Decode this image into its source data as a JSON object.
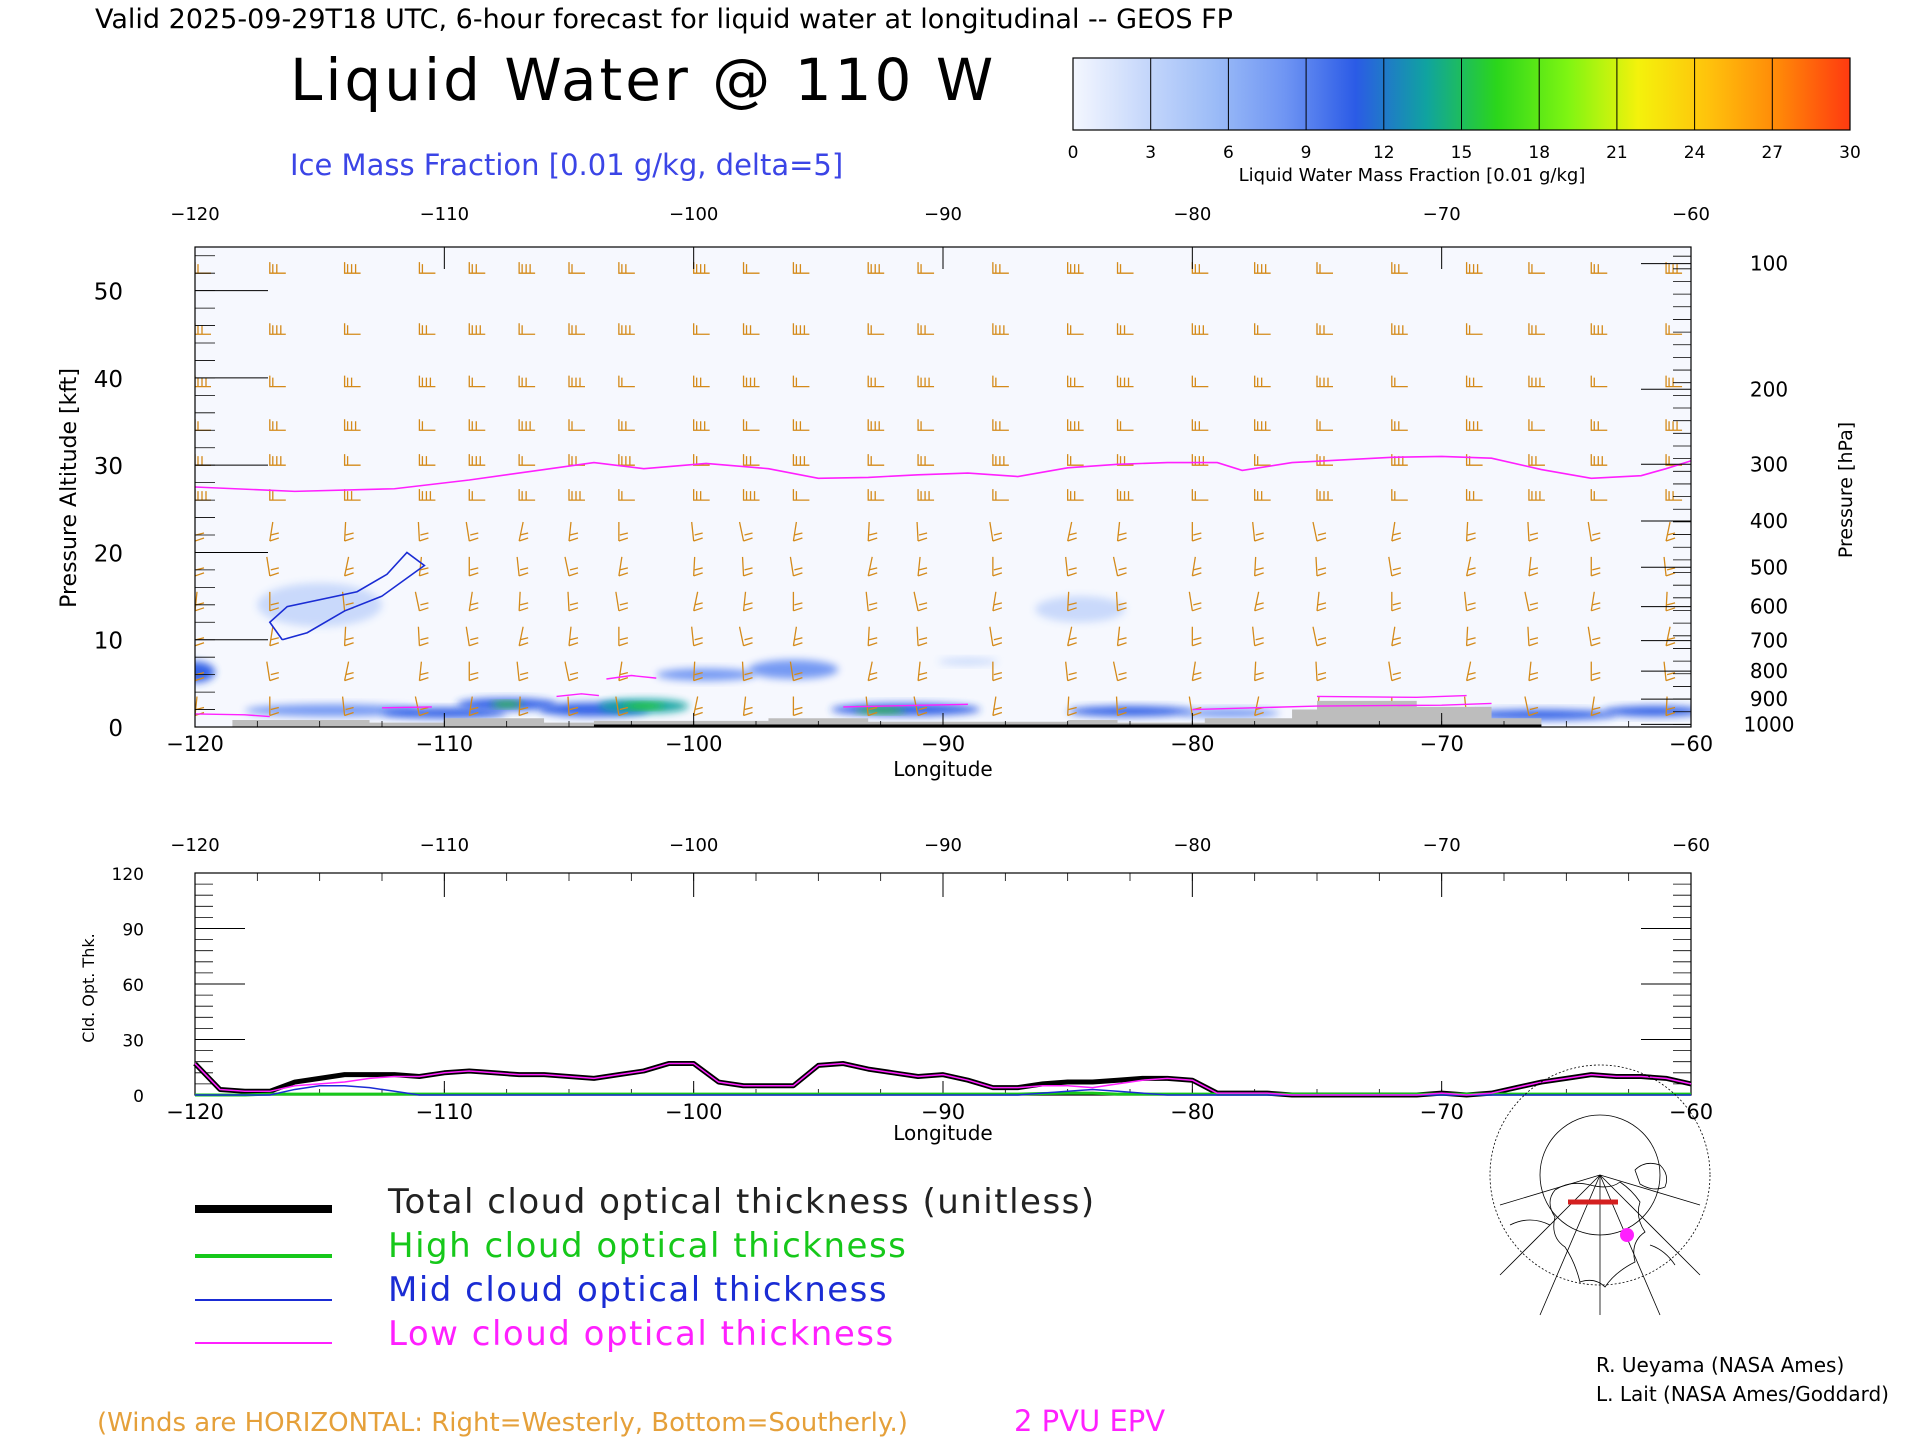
{
  "header": {
    "valid_line": "Valid 2025-09-29T18 UTC, 6-hour forecast for liquid water at longitudinal -- GEOS FP",
    "title": "Liquid Water @ 110 W",
    "contour_label": "Ice Mass Fraction [0.01 g/kg, delta=5]"
  },
  "colorbar": {
    "label": "Liquid Water Mass Fraction [0.01 g/kg]",
    "ticks": [
      "0",
      "3",
      "6",
      "9",
      "12",
      "15",
      "18",
      "21",
      "24",
      "27",
      "30"
    ],
    "colors": [
      "#f4f7ff",
      "#c7d8fb",
      "#9cbcf7",
      "#6f95f3",
      "#2b5be6",
      "#10a3a0",
      "#2bd61b",
      "#7ef512",
      "#f4f20c",
      "#ffc20c",
      "#ff8708",
      "#ff3a10"
    ]
  },
  "colors": {
    "wind_barb": "#d48a1a",
    "ice_contour": "#1a2cd4",
    "epv_line": "#ff20ff",
    "terrain": "#bdbdbd",
    "total_line": "#000000",
    "high_line": "#16c81a",
    "mid_line": "#1a2cd4",
    "low_line": "#ff20ff",
    "ice_label": "#3b45e6",
    "winds_note": "#e5a03a"
  },
  "chart_data": [
    {
      "type": "heatmap",
      "title": "Liquid Water @ 110 W",
      "xlabel": "Longitude",
      "ylabel": "Pressure Altitude [kft]",
      "y2label": "Pressure [hPa]",
      "xlim": [
        -120,
        -60
      ],
      "ylim": [
        0,
        55
      ],
      "x_ticks": [
        -120,
        -110,
        -100,
        -90,
        -80,
        -70,
        -60
      ],
      "x_tick_labels": [
        "−120",
        "−110",
        "−100",
        "−90",
        "−80",
        "−70",
        "−60"
      ],
      "y_ticks": [
        0,
        10,
        20,
        30,
        40,
        50
      ],
      "y_tick_labels": [
        "0",
        "10",
        "20",
        "30",
        "40",
        "50"
      ],
      "pressure_ticks": [
        {
          "hpa": "100",
          "kft": 53.1
        },
        {
          "hpa": "200",
          "kft": 38.7
        },
        {
          "hpa": "300",
          "kft": 30.1
        },
        {
          "hpa": "400",
          "kft": 23.6
        },
        {
          "hpa": "500",
          "kft": 18.3
        },
        {
          "hpa": "600",
          "kft": 13.8
        },
        {
          "hpa": "700",
          "kft": 9.9
        },
        {
          "hpa": "800",
          "kft": 6.4
        },
        {
          "hpa": "900",
          "kft": 3.2
        },
        {
          "hpa": "1000",
          "kft": 0.3
        }
      ],
      "liquid_water_patches": [
        {
          "lon": -120.0,
          "kft": 6.3,
          "rx": 0.8,
          "ry": 1.2,
          "value": 11
        },
        {
          "lon": -114.5,
          "kft": 1.9,
          "rx": 3.5,
          "ry": 0.7,
          "value": 9
        },
        {
          "lon": -110.0,
          "kft": 1.6,
          "rx": 2.5,
          "ry": 0.6,
          "value": 11
        },
        {
          "lon": -107.5,
          "kft": 2.6,
          "rx": 2.0,
          "ry": 0.7,
          "value": 12
        },
        {
          "lon": -107.5,
          "kft": 2.6,
          "rx": 0.6,
          "ry": 0.3,
          "value": 16
        },
        {
          "lon": -104.0,
          "kft": 2.0,
          "rx": 2.2,
          "ry": 0.8,
          "value": 10
        },
        {
          "lon": -102.0,
          "kft": 2.4,
          "rx": 1.8,
          "ry": 0.8,
          "value": 13
        },
        {
          "lon": -102.0,
          "kft": 2.4,
          "rx": 0.8,
          "ry": 0.3,
          "value": 17
        },
        {
          "lon": -99.5,
          "kft": 6.0,
          "rx": 2.0,
          "ry": 0.7,
          "value": 7
        },
        {
          "lon": -96.0,
          "kft": 6.6,
          "rx": 1.8,
          "ry": 1.1,
          "value": 9
        },
        {
          "lon": -91.5,
          "kft": 2.0,
          "rx": 3.0,
          "ry": 0.7,
          "value": 11
        },
        {
          "lon": -92.5,
          "kft": 1.9,
          "rx": 1.0,
          "ry": 0.3,
          "value": 16
        },
        {
          "lon": -89.0,
          "kft": 7.5,
          "rx": 1.2,
          "ry": 0.4,
          "value": 3
        },
        {
          "lon": -84.5,
          "kft": 13.5,
          "rx": 1.8,
          "ry": 1.5,
          "value": 3
        },
        {
          "lon": -82.5,
          "kft": 1.8,
          "rx": 2.5,
          "ry": 0.6,
          "value": 10
        },
        {
          "lon": -78.5,
          "kft": 1.6,
          "rx": 2.0,
          "ry": 0.5,
          "value": 7
        },
        {
          "lon": -66.0,
          "kft": 1.4,
          "rx": 3.0,
          "ry": 0.6,
          "value": 10
        },
        {
          "lon": -61.5,
          "kft": 1.8,
          "rx": 2.0,
          "ry": 0.6,
          "value": 11
        },
        {
          "lon": -115.0,
          "kft": 14.0,
          "rx": 2.5,
          "ry": 2.5,
          "value": 3
        }
      ],
      "ice_contour_5": [
        [
          -116.5,
          10
        ],
        [
          -117.0,
          12
        ],
        [
          -116.3,
          13.8
        ],
        [
          -113.5,
          15.5
        ],
        [
          -112.3,
          17.5
        ],
        [
          -111.5,
          20
        ],
        [
          -110.8,
          18.5
        ],
        [
          -112.5,
          15
        ],
        [
          -114.0,
          13.3
        ],
        [
          -115.5,
          10.8
        ],
        [
          -116.5,
          10
        ]
      ],
      "epv_2pvu": [
        [
          -120,
          27.5
        ],
        [
          -116,
          27
        ],
        [
          -112,
          27.3
        ],
        [
          -109,
          28.3
        ],
        [
          -106,
          29.5
        ],
        [
          -104,
          30.3
        ],
        [
          -102,
          29.6
        ],
        [
          -99.5,
          30.2
        ],
        [
          -97,
          29.6
        ],
        [
          -95,
          28.5
        ],
        [
          -93,
          28.6
        ],
        [
          -91,
          28.9
        ],
        [
          -89,
          29.1
        ],
        [
          -87,
          28.7
        ],
        [
          -85,
          29.7
        ],
        [
          -83,
          30.1
        ],
        [
          -81,
          30.3
        ],
        [
          -79,
          30.3
        ],
        [
          -78,
          29.4
        ],
        [
          -76,
          30.3
        ],
        [
          -74,
          30.6
        ],
        [
          -72,
          30.9
        ],
        [
          -70,
          31.0
        ],
        [
          -68,
          30.8
        ],
        [
          -66,
          29.5
        ],
        [
          -64,
          28.5
        ],
        [
          -62,
          28.8
        ],
        [
          -61,
          29.6
        ],
        [
          -60,
          30.5
        ],
        [
          -59.5,
          29
        ]
      ],
      "low_contour_lines": [
        [
          [
            -120,
            1.5
          ],
          [
            -118,
            1.4
          ],
          [
            -117,
            1.2
          ]
        ],
        [
          [
            -112.5,
            2.2
          ],
          [
            -110.5,
            2.3
          ]
        ],
        [
          [
            -105.5,
            3.5
          ],
          [
            -104.5,
            3.8
          ],
          [
            -103.8,
            3.6
          ]
        ],
        [
          [
            -103.5,
            5.5
          ],
          [
            -102.5,
            5.9
          ],
          [
            -101.5,
            5.6
          ]
        ],
        [
          [
            -94,
            2.3
          ],
          [
            -89,
            2.6
          ]
        ],
        [
          [
            -80,
            2.0
          ],
          [
            -75,
            2.4
          ],
          [
            -70,
            2.5
          ],
          [
            -68,
            2.7
          ]
        ],
        [
          [
            -75,
            3.5
          ],
          [
            -71,
            3.4
          ],
          [
            -69,
            3.6
          ]
        ]
      ],
      "terrain": [
        [
          -120,
          0
        ],
        [
          -118.5,
          0
        ],
        [
          -118.5,
          0.8
        ],
        [
          -113,
          0.8
        ],
        [
          -113,
          0.5
        ],
        [
          -110,
          0.5
        ],
        [
          -110,
          1.0
        ],
        [
          -106,
          1.0
        ],
        [
          -106,
          0.5
        ],
        [
          -104,
          0.5
        ],
        [
          -104,
          0.7
        ],
        [
          -97,
          0.7
        ],
        [
          -97,
          1.0
        ],
        [
          -93,
          1.0
        ],
        [
          -93,
          0.6
        ],
        [
          -85,
          0.6
        ],
        [
          -85,
          0.8
        ],
        [
          -83,
          0.8
        ],
        [
          -83,
          0.5
        ],
        [
          -79.5,
          0.5
        ],
        [
          -79.5,
          1.0
        ],
        [
          -76,
          1.0
        ],
        [
          -76,
          2.0
        ],
        [
          -75,
          2.0
        ],
        [
          -75,
          3.0
        ],
        [
          -71,
          3.0
        ],
        [
          -71,
          2.3
        ],
        [
          -68,
          2.3
        ],
        [
          -68,
          1.0
        ],
        [
          -66,
          1.0
        ],
        [
          -66,
          0
        ],
        [
          -120,
          0
        ]
      ],
      "wind_barb_columns": [
        -120,
        -117,
        -114,
        -111,
        -109,
        -107,
        -105,
        -103,
        -100,
        -98,
        -96,
        -93,
        -91,
        -88,
        -85,
        -83,
        -80,
        -77.5,
        -75,
        -72,
        -69,
        -66.5,
        -64,
        -61
      ]
    },
    {
      "type": "line",
      "xlabel": "Longitude",
      "ylabel": "Cld. Opt. Thk.",
      "xlim": [
        -120,
        -60
      ],
      "ylim": [
        0,
        120
      ],
      "x_ticks": [
        -120,
        -110,
        -100,
        -90,
        -80,
        -70,
        -60
      ],
      "x_tick_labels": [
        "−120",
        "−110",
        "−100",
        "−90",
        "−80",
        "−70",
        "−60"
      ],
      "y_ticks": [
        0,
        30,
        60,
        90,
        120
      ],
      "y_tick_labels": [
        "0",
        "30",
        "60",
        "90",
        "120"
      ],
      "x": [
        -120,
        -119,
        -118,
        -117,
        -116,
        -115,
        -114,
        -113,
        -112,
        -111,
        -110,
        -109,
        -108,
        -107,
        -106,
        -105,
        -104,
        -103,
        -102,
        -101,
        -100,
        -99,
        -98,
        -97,
        -96,
        -95,
        -94,
        -93,
        -92,
        -91,
        -90,
        -89,
        -88,
        -87,
        -86,
        -85,
        -84,
        -83,
        -82,
        -81,
        -80,
        -79,
        -78,
        -77,
        -76,
        -75,
        -74,
        -73,
        -72,
        -71,
        -70,
        -69,
        -68,
        -67,
        -66,
        -65,
        -64,
        -63,
        -62,
        -61,
        -60
      ],
      "series": [
        {
          "name": "Total cloud optical thickness (unitless)",
          "color": "#000000",
          "width": 5,
          "values": [
            17,
            3,
            2,
            2,
            7,
            9,
            11,
            11,
            11,
            10,
            12,
            13,
            12,
            11,
            11,
            10,
            9,
            11,
            13,
            17,
            17,
            7,
            5,
            5,
            5,
            16,
            17,
            14,
            12,
            10,
            11,
            8,
            4,
            4,
            6,
            7,
            7,
            8,
            9,
            9,
            8,
            1,
            1,
            1,
            0,
            0,
            0,
            0,
            0,
            0,
            1,
            0,
            1,
            4,
            7,
            9,
            11,
            10,
            10,
            9,
            6
          ]
        },
        {
          "name": "High cloud optical thickness",
          "color": "#16c81a",
          "width": 3,
          "values": [
            0,
            0,
            0,
            0.5,
            0.5,
            0.5,
            0.5,
            0.5,
            0.5,
            0.5,
            0.5,
            0.5,
            0.5,
            0.5,
            0.5,
            0.5,
            0.5,
            0.5,
            0.5,
            0.5,
            0.5,
            0.5,
            0.5,
            0.5,
            0.5,
            0.5,
            0.5,
            0.5,
            0.5,
            0.5,
            0.5,
            0.5,
            0.5,
            0.5,
            0.8,
            1,
            1,
            0.5,
            0.5,
            0.5,
            0.5,
            0.5,
            0.5,
            0.5,
            0.5,
            0.5,
            0.5,
            0.5,
            0.5,
            0.5,
            0.5,
            0.5,
            0.5,
            0.5,
            0.5,
            0.5,
            0.5,
            0.5,
            0.5,
            0.5,
            0.5
          ]
        },
        {
          "name": "Mid cloud optical thickness",
          "color": "#1a2cd4",
          "width": 1.5,
          "values": [
            0,
            0,
            0,
            0,
            3,
            5,
            5,
            4,
            2,
            0,
            0,
            0,
            0,
            0,
            0,
            0,
            0,
            0,
            0,
            0,
            0,
            0,
            0,
            0,
            0,
            0,
            0,
            0,
            0,
            0,
            0,
            0,
            0,
            0,
            1,
            2,
            3,
            2,
            1,
            0,
            0,
            0,
            0,
            0,
            0,
            0,
            0,
            0,
            0,
            0,
            0,
            0,
            0,
            0,
            0,
            0,
            0,
            0,
            0,
            0,
            0
          ]
        },
        {
          "name": "Low cloud optical thickness",
          "color": "#ff20ff",
          "width": 1.5,
          "values": [
            17,
            3,
            2,
            2,
            5,
            6,
            7,
            9,
            10,
            10,
            12,
            13,
            12,
            11,
            11,
            10,
            9,
            11,
            13,
            17,
            17,
            7,
            5,
            5,
            5,
            16,
            17,
            14,
            12,
            10,
            11,
            8,
            4,
            4,
            5,
            5,
            4,
            6,
            8,
            9,
            8,
            1,
            1,
            1,
            0,
            0,
            0,
            0,
            0,
            0,
            1,
            0,
            1,
            4,
            7,
            9,
            11,
            10,
            10,
            9,
            6
          ]
        }
      ]
    }
  ],
  "legend": {
    "items": [
      {
        "label": "Total cloud optical thickness (unitless)",
        "color": "#000000"
      },
      {
        "label": "High cloud optical thickness",
        "color": "#16c81a"
      },
      {
        "label": "Mid cloud optical thickness",
        "color": "#1a2cd4"
      },
      {
        "label": "Low cloud optical thickness",
        "color": "#ff20ff"
      }
    ]
  },
  "footer": {
    "winds_note": "(Winds are HORIZONTAL: Right=Westerly, Bottom=Southerly.)",
    "epv_label": "2 PVU EPV",
    "credit_1": "R. Ueyama (NASA Ames)",
    "credit_2": "L. Lait (NASA Ames/Goddard)"
  }
}
